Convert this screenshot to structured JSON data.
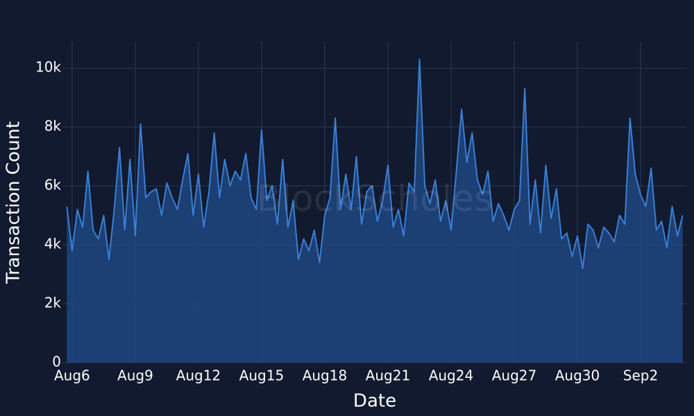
{
  "chart_data": {
    "type": "area",
    "watermark": "BlockScholes",
    "xlabel": "Date",
    "ylabel": "Transaction Count",
    "color": "#3a7fd5",
    "fill": "#1f4680",
    "grid": true,
    "x": [
      "Aug5 18:00",
      "Aug6 00:00",
      "Aug6 06:00",
      "Aug6 12:00",
      "Aug6 18:00",
      "Aug7 00:00",
      "Aug7 06:00",
      "Aug7 12:00",
      "Aug7 18:00",
      "Aug8 00:00",
      "Aug8 06:00",
      "Aug8 12:00",
      "Aug8 18:00",
      "Aug9 00:00",
      "Aug9 06:00",
      "Aug9 12:00",
      "Aug9 18:00",
      "Aug10 00:00",
      "Aug10 06:00",
      "Aug10 12:00",
      "Aug10 18:00",
      "Aug11 00:00",
      "Aug11 06:00",
      "Aug11 12:00",
      "Aug11 18:00",
      "Aug12 00:00",
      "Aug12 06:00",
      "Aug12 12:00",
      "Aug12 18:00",
      "Aug13 00:00",
      "Aug13 06:00",
      "Aug13 12:00",
      "Aug13 18:00",
      "Aug14 00:00",
      "Aug14 06:00",
      "Aug14 12:00",
      "Aug14 18:00",
      "Aug15 00:00",
      "Aug15 06:00",
      "Aug15 12:00",
      "Aug15 18:00",
      "Aug16 00:00",
      "Aug16 06:00",
      "Aug16 12:00",
      "Aug16 18:00",
      "Aug17 00:00",
      "Aug17 06:00",
      "Aug17 12:00",
      "Aug17 18:00",
      "Aug18 00:00",
      "Aug18 06:00",
      "Aug18 12:00",
      "Aug18 18:00",
      "Aug19 00:00",
      "Aug19 06:00",
      "Aug19 12:00",
      "Aug19 18:00",
      "Aug20 00:00",
      "Aug20 06:00",
      "Aug20 12:00",
      "Aug20 18:00",
      "Aug21 00:00",
      "Aug21 06:00",
      "Aug21 12:00",
      "Aug21 18:00",
      "Aug22 00:00",
      "Aug22 06:00",
      "Aug22 12:00",
      "Aug22 18:00",
      "Aug23 00:00",
      "Aug23 06:00",
      "Aug23 12:00",
      "Aug23 18:00",
      "Aug24 00:00",
      "Aug24 06:00",
      "Aug24 12:00",
      "Aug24 18:00",
      "Aug25 00:00",
      "Aug25 06:00",
      "Aug25 12:00",
      "Aug25 18:00",
      "Aug26 00:00",
      "Aug26 06:00",
      "Aug26 12:00",
      "Aug26 18:00",
      "Aug27 00:00",
      "Aug27 06:00",
      "Aug27 12:00",
      "Aug27 18:00",
      "Aug28 00:00",
      "Aug28 06:00",
      "Aug28 12:00",
      "Aug28 18:00",
      "Aug29 00:00",
      "Aug29 06:00",
      "Aug29 12:00",
      "Aug29 18:00",
      "Aug30 00:00",
      "Aug30 06:00",
      "Aug30 12:00",
      "Aug30 18:00",
      "Aug31 00:00",
      "Aug31 06:00",
      "Aug31 12:00",
      "Aug31 18:00",
      "Sep1 00:00",
      "Sep1 06:00",
      "Sep1 12:00",
      "Sep1 18:00",
      "Sep2 00:00",
      "Sep2 06:00",
      "Sep2 12:00",
      "Sep2 18:00",
      "Sep3 00:00",
      "Sep3 06:00",
      "Sep3 12:00",
      "Sep3 18:00",
      "Sep4 00:00"
    ],
    "values": [
      5300,
      3800,
      5200,
      4600,
      6500,
      4500,
      4200,
      5000,
      3500,
      5200,
      7300,
      4500,
      6900,
      4300,
      8100,
      5600,
      5800,
      5900,
      5000,
      6100,
      5600,
      5200,
      6200,
      7100,
      5000,
      6400,
      4600,
      5800,
      7800,
      5600,
      6900,
      6000,
      6500,
      6200,
      7100,
      5600,
      5200,
      7900,
      5500,
      6000,
      4700,
      6900,
      4600,
      5500,
      3500,
      4200,
      3800,
      4500,
      3400,
      5000,
      5600,
      8300,
      5200,
      6400,
      5200,
      7000,
      4700,
      5800,
      6000,
      4800,
      5500,
      6700,
      4600,
      5200,
      4300,
      6100,
      5800,
      10300,
      6000,
      5400,
      6200,
      4800,
      5500,
      4500,
      6500,
      8600,
      6800,
      7800,
      6200,
      5700,
      6500,
      4800,
      5400,
      5000,
      4500,
      5200,
      5500,
      9300,
      4700,
      6200,
      4400,
      6700,
      4900,
      5900,
      4200,
      4400,
      3600,
      4300,
      3200,
      4700,
      4500,
      3900,
      4600,
      4400,
      4100,
      5000,
      4700,
      8300,
      6400,
      5700,
      5300,
      6600,
      4500,
      4800,
      3900,
      5300,
      4300,
      5000
    ],
    "xlim": [
      "Aug5 13:00",
      "Sep4 05:00"
    ],
    "xticks": [
      "Aug6",
      "Aug9",
      "Aug12",
      "Aug15",
      "Aug18",
      "Aug21",
      "Aug24",
      "Aug27",
      "Aug30",
      "Sep2"
    ],
    "ylim": [
      0,
      10900
    ],
    "yticks": [
      0,
      {
        "value": 2000,
        "label": "2k"
      },
      {
        "value": 4000,
        "label": "4k"
      },
      {
        "value": 6000,
        "label": "6k"
      },
      {
        "value": 8000,
        "label": "8k"
      },
      {
        "value": 10000,
        "label": "10k"
      }
    ]
  }
}
